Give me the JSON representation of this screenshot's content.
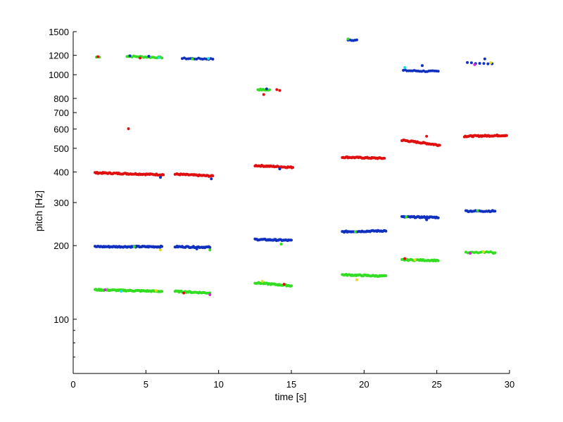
{
  "chart_data": {
    "type": "scatter",
    "title": "",
    "xlabel": "time [s]",
    "ylabel": "pitch [Hz]",
    "xlim": [
      0,
      30
    ],
    "ylim": [
      60,
      1500
    ],
    "yscale": "log",
    "grid": false,
    "legend": "none",
    "x_ticks": [
      0,
      5,
      10,
      15,
      20,
      25,
      30
    ],
    "x_tick_labels": [
      "0",
      "5",
      "10",
      "15",
      "20",
      "25",
      "30"
    ],
    "y_ticks": [
      100,
      200,
      300,
      400,
      500,
      600,
      700,
      800,
      1000,
      1200,
      1500
    ],
    "y_tick_labels": [
      "100",
      "200",
      "300",
      "400",
      "500",
      "600",
      "700",
      "800",
      "1000",
      "1200",
      "1500"
    ],
    "y_minor_ticks": [
      60,
      70,
      80,
      90
    ],
    "colors": {
      "red": "#e01010",
      "blue": "#1030c0",
      "green": "#33dd22",
      "cyan": "#22dddd",
      "magenta": "#dd22dd",
      "yellow": "#dddd22"
    },
    "segments": [
      {
        "t0": 1.6,
        "t1": 1.8,
        "f0": 1180,
        "f1": 1185,
        "color": "green",
        "n": 3
      },
      {
        "t0": 3.7,
        "t1": 6.1,
        "f0": 1190,
        "f1": 1175,
        "color": "green",
        "n": 22
      },
      {
        "t0": 7.5,
        "t1": 9.6,
        "f0": 1165,
        "f1": 1160,
        "color": "blue",
        "n": 16
      },
      {
        "t0": 12.7,
        "t1": 13.5,
        "f0": 870,
        "f1": 865,
        "color": "green",
        "n": 10
      },
      {
        "t0": 14.0,
        "t1": 14.2,
        "f0": 868,
        "f1": 866,
        "color": "red",
        "n": 2
      },
      {
        "t0": 18.9,
        "t1": 19.5,
        "f0": 1390,
        "f1": 1385,
        "color": "blue",
        "n": 6
      },
      {
        "t0": 22.7,
        "t1": 25.1,
        "f0": 1040,
        "f1": 1030,
        "color": "blue",
        "n": 20
      },
      {
        "t0": 27.1,
        "t1": 28.8,
        "f0": 1120,
        "f1": 1110,
        "color": "blue",
        "n": 7
      },
      {
        "t0": 3.8,
        "t1": 3.8,
        "f0": 600,
        "f1": 600,
        "color": "red",
        "n": 1
      },
      {
        "t0": 1.5,
        "t1": 6.2,
        "f0": 397,
        "f1": 390,
        "color": "red",
        "n": 70
      },
      {
        "t0": 7.0,
        "t1": 9.6,
        "f0": 392,
        "f1": 385,
        "color": "red",
        "n": 40
      },
      {
        "t0": 12.5,
        "t1": 15.1,
        "f0": 425,
        "f1": 418,
        "color": "red",
        "n": 40
      },
      {
        "t0": 18.5,
        "t1": 21.4,
        "f0": 460,
        "f1": 455,
        "color": "red",
        "n": 45
      },
      {
        "t0": 22.6,
        "t1": 25.2,
        "f0": 540,
        "f1": 515,
        "color": "red",
        "n": 45
      },
      {
        "t0": 26.9,
        "t1": 29.8,
        "f0": 560,
        "f1": 565,
        "color": "red",
        "n": 50
      },
      {
        "t0": 1.5,
        "t1": 6.1,
        "f0": 198,
        "f1": 198,
        "color": "blue",
        "n": 70
      },
      {
        "t0": 7.0,
        "t1": 9.4,
        "f0": 198,
        "f1": 197,
        "color": "blue",
        "n": 35
      },
      {
        "t0": 12.5,
        "t1": 15.0,
        "f0": 212,
        "f1": 210,
        "color": "blue",
        "n": 40
      },
      {
        "t0": 18.5,
        "t1": 21.5,
        "f0": 228,
        "f1": 230,
        "color": "blue",
        "n": 45
      },
      {
        "t0": 22.6,
        "t1": 25.1,
        "f0": 262,
        "f1": 261,
        "color": "blue",
        "n": 40
      },
      {
        "t0": 27.0,
        "t1": 29.0,
        "f0": 277,
        "f1": 277,
        "color": "blue",
        "n": 25
      },
      {
        "t0": 1.5,
        "t1": 6.1,
        "f0": 132,
        "f1": 130,
        "color": "green",
        "n": 70
      },
      {
        "t0": 7.0,
        "t1": 9.4,
        "f0": 130,
        "f1": 128,
        "color": "green",
        "n": 35
      },
      {
        "t0": 12.5,
        "t1": 15.0,
        "f0": 141,
        "f1": 137,
        "color": "green",
        "n": 40
      },
      {
        "t0": 18.5,
        "t1": 21.5,
        "f0": 152,
        "f1": 150,
        "color": "green",
        "n": 45
      },
      {
        "t0": 22.6,
        "t1": 25.1,
        "f0": 175,
        "f1": 174,
        "color": "green",
        "n": 30
      },
      {
        "t0": 27.0,
        "t1": 29.0,
        "f0": 187,
        "f1": 188,
        "color": "green",
        "n": 15
      }
    ],
    "accent_points": [
      {
        "t": 1.7,
        "f": 1185,
        "color": "red"
      },
      {
        "t": 3.9,
        "f": 1195,
        "color": "blue"
      },
      {
        "t": 4.6,
        "f": 1170,
        "color": "red"
      },
      {
        "t": 5.2,
        "f": 1190,
        "color": "blue"
      },
      {
        "t": 5.9,
        "f": 1175,
        "color": "cyan"
      },
      {
        "t": 8.2,
        "f": 1160,
        "color": "green"
      },
      {
        "t": 9.3,
        "f": 1165,
        "color": "cyan"
      },
      {
        "t": 13.1,
        "f": 830,
        "color": "red"
      },
      {
        "t": 13.3,
        "f": 875,
        "color": "blue"
      },
      {
        "t": 18.9,
        "f": 1400,
        "color": "green"
      },
      {
        "t": 22.8,
        "f": 1070,
        "color": "cyan"
      },
      {
        "t": 24.0,
        "f": 1090,
        "color": "blue"
      },
      {
        "t": 27.6,
        "f": 1100,
        "color": "magenta"
      },
      {
        "t": 28.3,
        "f": 1160,
        "color": "blue"
      },
      {
        "t": 28.7,
        "f": 1120,
        "color": "yellow"
      },
      {
        "t": 6.0,
        "f": 380,
        "color": "blue"
      },
      {
        "t": 9.5,
        "f": 375,
        "color": "blue"
      },
      {
        "t": 14.2,
        "f": 412,
        "color": "blue"
      },
      {
        "t": 24.3,
        "f": 560,
        "color": "red"
      },
      {
        "t": 4.2,
        "f": 198,
        "color": "green"
      },
      {
        "t": 6.0,
        "f": 192,
        "color": "yellow"
      },
      {
        "t": 8.5,
        "f": 194,
        "color": "blue"
      },
      {
        "t": 9.4,
        "f": 192,
        "color": "green"
      },
      {
        "t": 14.3,
        "f": 203,
        "color": "green"
      },
      {
        "t": 19.4,
        "f": 228,
        "color": "green"
      },
      {
        "t": 24.3,
        "f": 255,
        "color": "blue"
      },
      {
        "t": 22.9,
        "f": 262,
        "color": "green"
      },
      {
        "t": 27.8,
        "f": 278,
        "color": "green"
      },
      {
        "t": 2.2,
        "f": 132,
        "color": "magenta"
      },
      {
        "t": 3.3,
        "f": 130,
        "color": "cyan"
      },
      {
        "t": 5.7,
        "f": 131,
        "color": "yellow"
      },
      {
        "t": 7.6,
        "f": 128,
        "color": "red"
      },
      {
        "t": 9.4,
        "f": 126,
        "color": "magenta"
      },
      {
        "t": 13.0,
        "f": 143,
        "color": "yellow"
      },
      {
        "t": 14.5,
        "f": 139,
        "color": "red"
      },
      {
        "t": 19.5,
        "f": 145,
        "color": "yellow"
      },
      {
        "t": 22.8,
        "f": 177,
        "color": "red"
      },
      {
        "t": 23.5,
        "f": 175,
        "color": "yellow"
      },
      {
        "t": 27.3,
        "f": 186,
        "color": "magenta"
      },
      {
        "t": 28.2,
        "f": 189,
        "color": "yellow"
      },
      {
        "t": 28.9,
        "f": 186,
        "color": "green"
      }
    ]
  }
}
